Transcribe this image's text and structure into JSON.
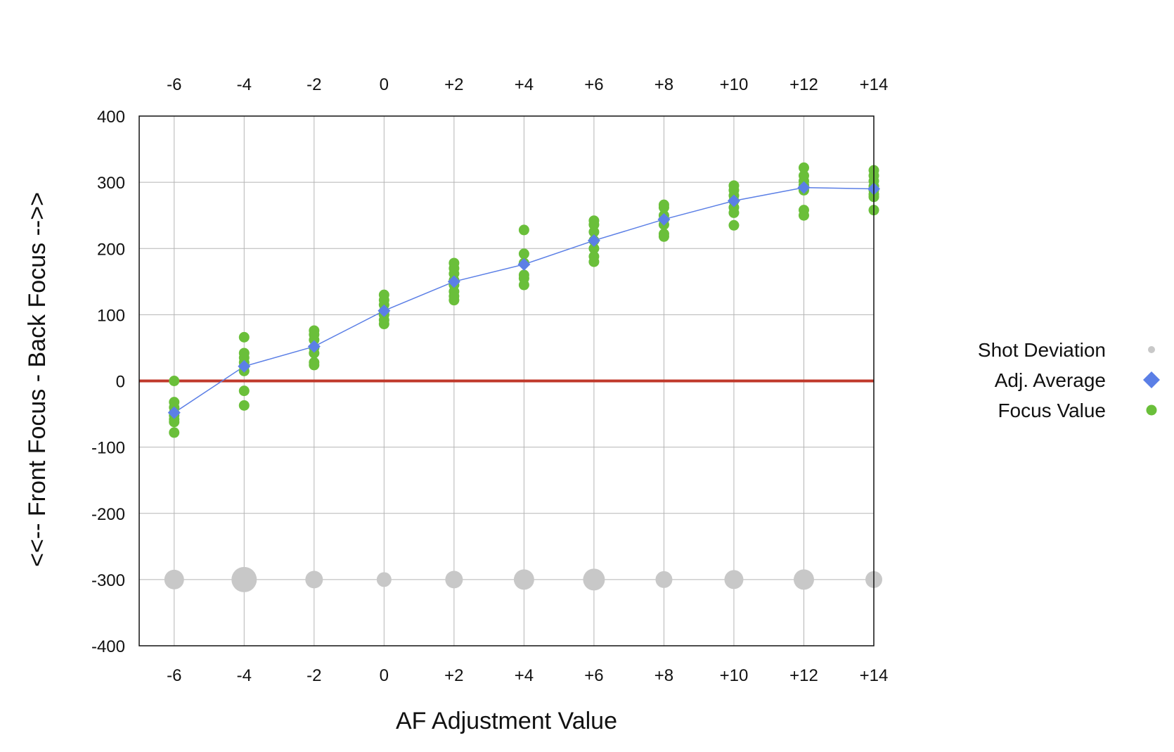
{
  "chart_data": {
    "type": "scatter",
    "xlabel": "AF Adjustment Value",
    "ylabel": "<<-- Front Focus - Back Focus -->>",
    "xlim": [
      -7,
      14
    ],
    "ylim": [
      -400,
      400
    ],
    "x_ticks": [
      -6,
      -4,
      -2,
      0,
      2,
      4,
      6,
      8,
      10,
      12,
      14
    ],
    "x_tick_labels": [
      "-6",
      "-4",
      "-2",
      "0",
      "+2",
      "+4",
      "+6",
      "+8",
      "+10",
      "+12",
      "+14"
    ],
    "y_ticks": [
      400,
      300,
      200,
      100,
      0,
      -100,
      -200,
      -300,
      -400
    ],
    "y_tick_labels": [
      "400",
      "300",
      "200",
      "100",
      "0",
      "-100",
      "-200",
      "-300",
      "-400"
    ],
    "grid": true,
    "zero_line_color": "#c0392b",
    "legend_position": "right",
    "legend": [
      {
        "label": "Shot Deviation",
        "marker": "circle-small",
        "color": "#c8c8c8"
      },
      {
        "label": "Adj. Average",
        "marker": "diamond",
        "color": "#5b7fe6"
      },
      {
        "label": "Focus Value",
        "marker": "circle",
        "color": "#6abf3a"
      }
    ],
    "series": [
      {
        "name": "Focus Value",
        "color": "#6abf3a",
        "points": [
          {
            "x": -6,
            "values": [
              0,
              -32,
              -40,
              -48,
              -52,
              -58,
              -62,
              -78
            ]
          },
          {
            "x": -4,
            "values": [
              66,
              42,
              35,
              28,
              22,
              15,
              -15,
              -37
            ]
          },
          {
            "x": -2,
            "values": [
              76,
              70,
              62,
              50,
              42,
              28,
              24
            ]
          },
          {
            "x": 0,
            "values": [
              130,
              122,
              115,
              105,
              100,
              92,
              86
            ]
          },
          {
            "x": 2,
            "values": [
              178,
              170,
              162,
              152,
              145,
              135,
              128,
              122
            ]
          },
          {
            "x": 4,
            "values": [
              228,
              192,
              178,
              160,
              155,
              145
            ]
          },
          {
            "x": 6,
            "values": [
              242,
              236,
              225,
              212,
              200,
              188,
              180
            ]
          },
          {
            "x": 8,
            "values": [
              266,
              262,
              250,
              244,
              236,
              222,
              218
            ]
          },
          {
            "x": 10,
            "values": [
              295,
              288,
              280,
              272,
              262,
              254,
              235
            ]
          },
          {
            "x": 12,
            "values": [
              322,
              310,
              302,
              296,
              288,
              258,
              250
            ]
          },
          {
            "x": 14,
            "values": [
              318,
              310,
              302,
              294,
              288,
              282,
              278,
              258
            ]
          }
        ]
      },
      {
        "name": "Adj. Average",
        "color": "#5b7fe6",
        "x": [
          -6,
          -4,
          -2,
          0,
          2,
          4,
          6,
          8,
          10,
          12,
          14
        ],
        "y": [
          -48,
          22,
          52,
          106,
          150,
          176,
          212,
          244,
          272,
          292,
          290
        ]
      },
      {
        "name": "Shot Deviation",
        "color": "#c8c8c8",
        "y_position": -300,
        "x": [
          -6,
          -4,
          -2,
          0,
          2,
          4,
          6,
          8,
          10,
          12,
          14
        ],
        "sizes": [
          24,
          32,
          21,
          17,
          21,
          25,
          27,
          20,
          23,
          25,
          20
        ]
      }
    ]
  }
}
